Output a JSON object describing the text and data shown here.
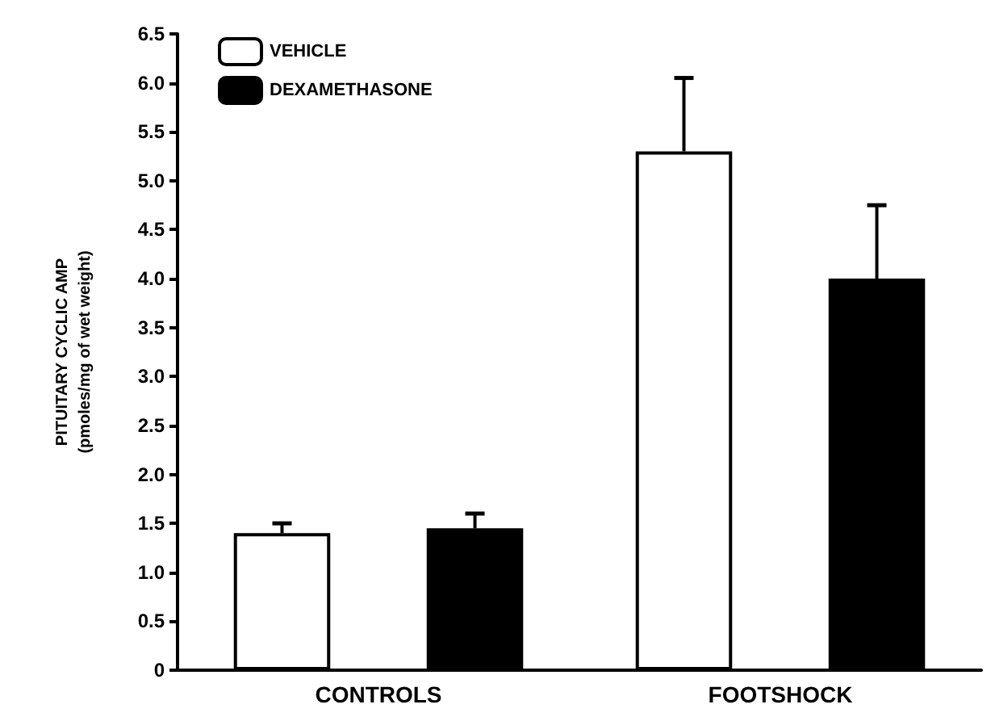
{
  "chart_data": {
    "type": "bar",
    "ylabel": "PITUITARY CYCLIC AMP\n(pmoles/mg of wet weight)",
    "categories": [
      "CONTROLS",
      "FOOTSHOCK"
    ],
    "series": [
      {
        "name": "VEHICLE",
        "color": "#ffffff",
        "values": [
          1.4,
          5.3
        ],
        "errors": [
          [
            1.4,
            1.5
          ],
          [
            5.3,
            6.05
          ]
        ]
      },
      {
        "name": "DEXAMETHASONE",
        "color": "#000000",
        "values": [
          1.45,
          4.0
        ],
        "errors": [
          [
            1.45,
            1.6
          ],
          [
            4.0,
            4.75
          ]
        ]
      }
    ],
    "ylim": [
      0,
      6.5
    ],
    "yticks": [
      0,
      0.5,
      {
        "value": 1,
        "label": "1.0"
      },
      1.5,
      {
        "value": 2,
        "label": "2.0"
      },
      2.5,
      {
        "value": 3,
        "label": "3.0"
      },
      3.5,
      {
        "value": 4,
        "label": "4.0"
      },
      4.5,
      {
        "value": 5,
        "label": "5.0"
      },
      5.5,
      {
        "value": 6,
        "label": "6.0"
      },
      6.5
    ],
    "grid": false,
    "legend": "top left"
  }
}
